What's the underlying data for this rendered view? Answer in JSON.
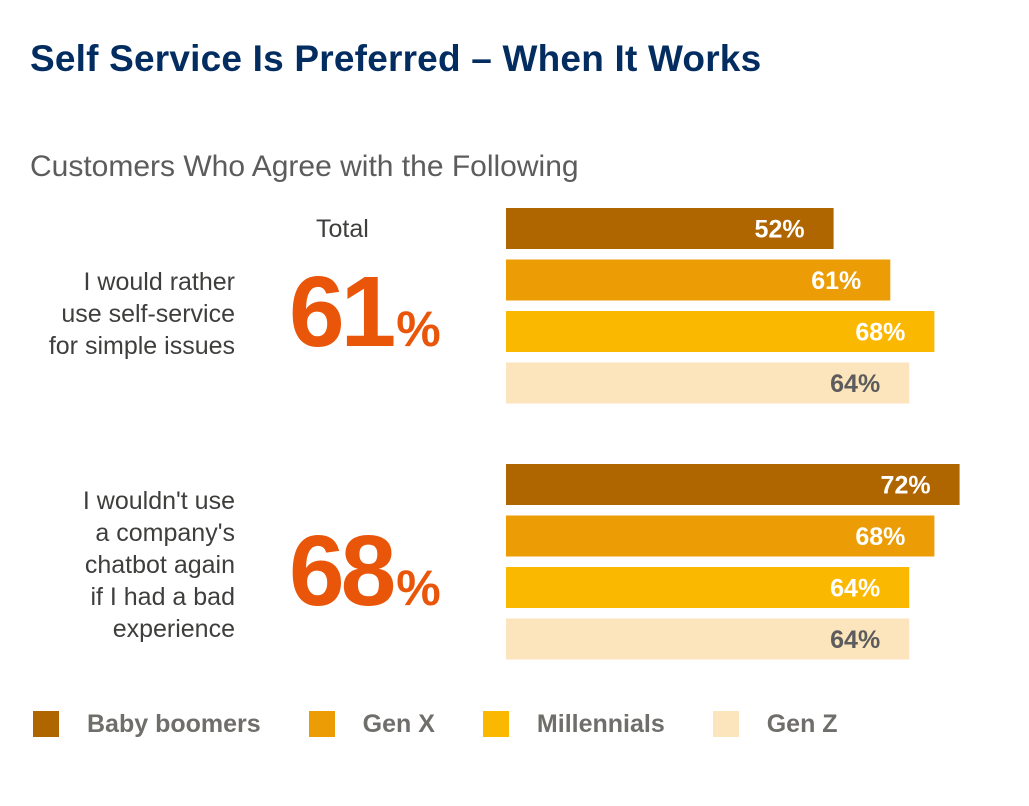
{
  "title": "Self Service Is Preferred – When It Works",
  "subtitle": "Customers Who Agree with the Following",
  "total_header": "Total",
  "colors": {
    "title": "#032d60",
    "total": "#ea5609",
    "Baby boomers": "#b06600",
    "Gen X": "#ec9d05",
    "Millennials": "#fbb800",
    "Gen Z": "#fce4bc"
  },
  "chart_data": {
    "type": "bar",
    "orientation": "horizontal",
    "title": "Self Service Is Preferred – When It Works",
    "subtitle": "Customers Who Agree with the Following",
    "unit": "%",
    "series_names": [
      "Baby boomers",
      "Gen X",
      "Millennials",
      "Gen Z"
    ],
    "groups": [
      {
        "label_lines": [
          "I would rather",
          "use self-service",
          "for simple issues"
        ],
        "total": 61,
        "values": [
          52,
          61,
          68,
          64
        ]
      },
      {
        "label_lines": [
          "I wouldn't use",
          "a company's",
          "chatbot again",
          "if I had a bad",
          "experience"
        ],
        "total": 68,
        "values": [
          72,
          68,
          64,
          64
        ]
      }
    ],
    "legend": [
      "Baby boomers",
      "Gen X",
      "Millennials",
      "Gen Z"
    ],
    "legend_position": "bottom",
    "grid": false
  }
}
